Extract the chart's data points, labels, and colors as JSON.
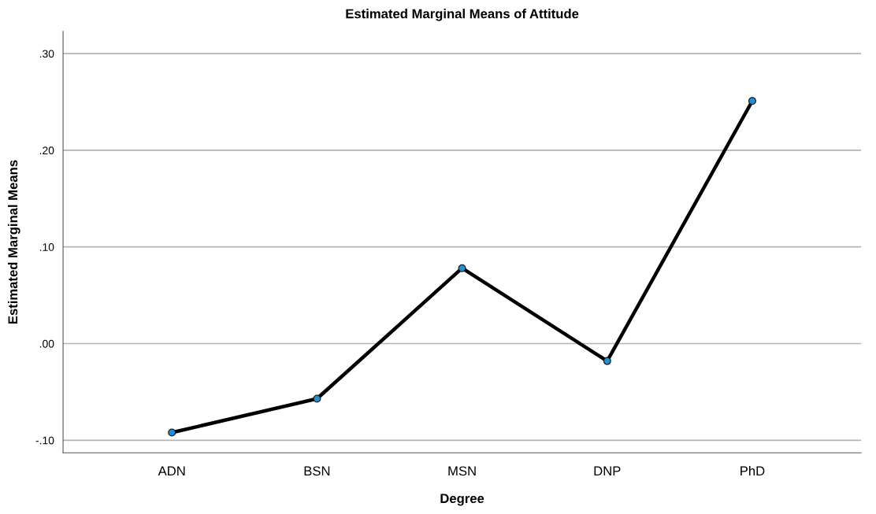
{
  "chart_data": {
    "type": "line",
    "title": "Estimated Marginal Means of Attitude",
    "xlabel": "Degree",
    "ylabel": "Estimated Marginal Means",
    "categories": [
      "ADN",
      "BSN",
      "MSN",
      "DNP",
      "PhD"
    ],
    "series": [
      {
        "color": "#000000",
        "colors": [
          "#1e90dc",
          "#1e90dc",
          "#1e90dc",
          "#1e90dc",
          "#1e90dc"
        ],
        "values": [
          -0.092,
          -0.057,
          0.078,
          -0.018,
          0.251
        ]
      }
    ],
    "ylim": [
      -0.113,
      0.323
    ],
    "yticks": [
      {
        "value": -0.1,
        "label": "-.10"
      },
      {
        "value": 0.0,
        "label": ".00"
      },
      {
        "value": 0.1,
        "label": ".10"
      },
      {
        "value": 0.2,
        "label": ".20"
      },
      {
        "value": 0.3,
        "label": ".30"
      }
    ],
    "grid": "y",
    "marker": "circle",
    "line_style": "solid"
  }
}
